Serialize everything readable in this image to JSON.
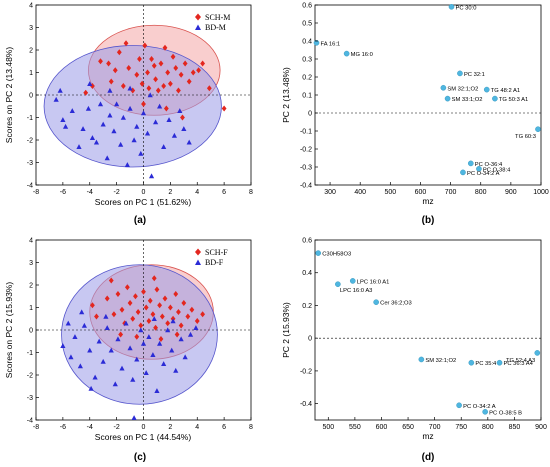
{
  "panels": [
    {
      "id": "a",
      "caption": "(a)",
      "chart_data": {
        "type": "scatter",
        "title": "",
        "xlabel": "Scores on PC 1 (51.62%)",
        "ylabel": "Scores on PC 2 (13.48%)",
        "xlim": [
          -8,
          8
        ],
        "ylim": [
          -4,
          4
        ],
        "xticks": [
          "-8",
          "-6",
          "-4",
          "-2",
          "0",
          "2",
          "4",
          "6",
          "8"
        ],
        "yticks": [
          "-4",
          "-3",
          "-2",
          "-1",
          "0",
          "1",
          "2",
          "3",
          "4"
        ],
        "grid": false,
        "legend_placement": "top-right",
        "ellipses": [
          {
            "series": "SCH-M",
            "cx": 0.8,
            "cy": 1.1,
            "rx": 4.9,
            "ry": 2.0,
            "fill": "#f4a6a6",
            "stroke": "#d9534f"
          },
          {
            "series": "BD-M",
            "cx": -0.8,
            "cy": -0.5,
            "rx": 6.6,
            "ry": 2.7,
            "fill": "#9a9ae8",
            "stroke": "#5555cc"
          }
        ],
        "series": [
          {
            "name": "SCH-M",
            "marker": "diamond",
            "color": "#e3261f",
            "points": [
              [
                -3.2,
                1.5
              ],
              [
                -2.6,
                1.4
              ],
              [
                -2.4,
                0.6
              ],
              [
                -2.1,
                1.1
              ],
              [
                -1.8,
                1.9
              ],
              [
                -1.5,
                0.4
              ],
              [
                -1.3,
                2.3
              ],
              [
                -1.1,
                1.2
              ],
              [
                -0.8,
                0.2
              ],
              [
                -0.5,
                0.9
              ],
              [
                -0.3,
                1.6
              ],
              [
                -0.1,
                0.5
              ],
              [
                0.1,
                2.2
              ],
              [
                0.3,
                1.0
              ],
              [
                0.4,
                0.3
              ],
              [
                0.6,
                1.6
              ],
              [
                0.8,
                1.3
              ],
              [
                0.9,
                0.7
              ],
              [
                1.1,
                0.2
              ],
              [
                1.3,
                1.4
              ],
              [
                1.5,
                0.4
              ],
              [
                1.6,
                2.1
              ],
              [
                1.8,
                1.0
              ],
              [
                2.0,
                0.5
              ],
              [
                2.2,
                1.7
              ],
              [
                2.4,
                1.2
              ],
              [
                2.6,
                0.2
              ],
              [
                2.8,
                0.9
              ],
              [
                3.1,
                1.4
              ],
              [
                3.4,
                0.6
              ],
              [
                3.7,
                1.0
              ],
              [
                4.1,
                1.1
              ],
              [
                4.4,
                1.4
              ],
              [
                4.9,
                0.3
              ],
              [
                6.0,
                -0.6
              ],
              [
                -3.8,
                0.4
              ],
              [
                -4.3,
                0.1
              ],
              [
                0.0,
                -0.4
              ],
              [
                1.7,
                -0.6
              ],
              [
                2.9,
                -1.0
              ]
            ]
          },
          {
            "name": "BD-M",
            "marker": "triangle",
            "color": "#2b2bd6",
            "points": [
              [
                -6.0,
                -1.1
              ],
              [
                -5.8,
                -1.4
              ],
              [
                -5.3,
                -0.7
              ],
              [
                -4.8,
                -2.3
              ],
              [
                -4.5,
                -1.5
              ],
              [
                -4.1,
                -0.6
              ],
              [
                -3.8,
                -1.9
              ],
              [
                -3.5,
                -2.1
              ],
              [
                -3.2,
                -0.4
              ],
              [
                -3.0,
                -1.3
              ],
              [
                -2.7,
                -2.8
              ],
              [
                -2.5,
                -0.9
              ],
              [
                -2.2,
                -1.6
              ],
              [
                -2.0,
                -0.4
              ],
              [
                -1.7,
                -2.2
              ],
              [
                -1.5,
                -1.0
              ],
              [
                -1.2,
                -3.1
              ],
              [
                -1.0,
                -0.6
              ],
              [
                -0.7,
                -2.0
              ],
              [
                -0.5,
                -1.4
              ],
              [
                -0.2,
                -2.6
              ],
              [
                0.0,
                -0.8
              ],
              [
                0.3,
                -1.7
              ],
              [
                0.6,
                -3.6
              ],
              [
                0.9,
                -1.2
              ],
              [
                1.2,
                -0.5
              ],
              [
                1.5,
                -2.3
              ],
              [
                1.9,
                -1.1
              ],
              [
                2.3,
                -1.8
              ],
              [
                2.7,
                -0.7
              ],
              [
                3.0,
                -1.5
              ],
              [
                3.4,
                -2.1
              ],
              [
                -6.2,
                0.2
              ],
              [
                -4.0,
                0.5
              ],
              [
                -2.5,
                0.2
              ],
              [
                -1.0,
                0.3
              ],
              [
                0.5,
                0.0
              ],
              [
                -6.5,
                -0.2
              ]
            ]
          }
        ]
      }
    },
    {
      "id": "b",
      "caption": "(b)",
      "chart_data": {
        "type": "scatter",
        "title": "",
        "xlabel": "mz",
        "ylabel": "PC 2 (13.48%)",
        "xlim": [
          250,
          1000
        ],
        "ylim": [
          -0.4,
          0.6
        ],
        "xticks": [
          "300",
          "400",
          "500",
          "600",
          "700",
          "800",
          "900",
          "1000"
        ],
        "yticks": [
          "-0.4",
          "-0.3",
          "-0.2",
          "-0.1",
          "0",
          "0.1",
          "0.2",
          "0.3",
          "0.4",
          "0.5",
          "0.6"
        ],
        "grid": false,
        "points": [
          {
            "label": "PC 30:0",
            "x": 703,
            "y": 0.59,
            "anchor": "right"
          },
          {
            "label": "FA 16:1",
            "x": 255,
            "y": 0.39,
            "anchor": "right"
          },
          {
            "label": "MG 16:0",
            "x": 355,
            "y": 0.33,
            "anchor": "right"
          },
          {
            "label": "PC 32:1",
            "x": 731,
            "y": 0.22,
            "anchor": "right"
          },
          {
            "label": "SM 32:1;O2",
            "x": 676,
            "y": 0.14,
            "anchor": "right"
          },
          {
            "label": "TG 48:2 A1",
            "x": 820,
            "y": 0.13,
            "anchor": "right"
          },
          {
            "label": "SM 33:1;O2",
            "x": 690,
            "y": 0.08,
            "anchor": "right"
          },
          {
            "label": "TG 50:3 A1",
            "x": 847,
            "y": 0.08,
            "anchor": "right"
          },
          {
            "label": "TG 60:3",
            "x": 990,
            "y": -0.09,
            "anchor": "left"
          },
          {
            "label": "PC O-36:4",
            "x": 767,
            "y": -0.28,
            "anchor": "right"
          },
          {
            "label": "PC O-38:4",
            "x": 794,
            "y": -0.31,
            "anchor": "right"
          },
          {
            "label": "PC O-34:2 A",
            "x": 741,
            "y": -0.33,
            "anchor": "right"
          }
        ]
      }
    },
    {
      "id": "c",
      "caption": "(c)",
      "chart_data": {
        "type": "scatter",
        "title": "",
        "xlabel": "Scores on PC 1 (44.54%)",
        "ylabel": "Scores on PC 2 (15.93%)",
        "xlim": [
          -8,
          8
        ],
        "ylim": [
          -4,
          4
        ],
        "xticks": [
          "-8",
          "-6",
          "-4",
          "-2",
          "0",
          "2",
          "4",
          "6",
          "8"
        ],
        "yticks": [
          "-4",
          "-3",
          "-2",
          "-1",
          "0",
          "1",
          "2",
          "3",
          "4"
        ],
        "grid": false,
        "legend_placement": "top-right",
        "ellipses": [
          {
            "series": "SCH-F",
            "cx": 0.6,
            "cy": 0.8,
            "rx": 4.6,
            "ry": 2.1,
            "fill": "#f4a6a6",
            "stroke": "#d9534f"
          },
          {
            "series": "BD-F",
            "cx": -0.3,
            "cy": -0.2,
            "rx": 5.8,
            "ry": 3.1,
            "fill": "#9a9ae8",
            "stroke": "#5555cc"
          }
        ],
        "series": [
          {
            "name": "SCH-F",
            "marker": "diamond",
            "color": "#e3261f",
            "points": [
              [
                -2.4,
                2.2
              ],
              [
                -2.7,
                1.4
              ],
              [
                -2.2,
                0.7
              ],
              [
                -1.9,
                1.6
              ],
              [
                -1.6,
                0.9
              ],
              [
                -1.4,
                0.3
              ],
              [
                -1.2,
                1.9
              ],
              [
                -1.0,
                1.2
              ],
              [
                -0.8,
                0.5
              ],
              [
                -0.6,
                1.5
              ],
              [
                -0.4,
                0.8
              ],
              [
                -0.2,
                0.2
              ],
              [
                0.0,
                1.7
              ],
              [
                0.2,
                1.0
              ],
              [
                0.4,
                0.4
              ],
              [
                0.5,
                1.3
              ],
              [
                0.7,
                0.7
              ],
              [
                0.9,
                0.1
              ],
              [
                1.0,
                1.8
              ],
              [
                1.2,
                1.1
              ],
              [
                1.4,
                0.6
              ],
              [
                1.6,
                1.4
              ],
              [
                1.8,
                0.3
              ],
              [
                2.0,
                1.0
              ],
              [
                2.2,
                0.5
              ],
              [
                2.4,
                1.6
              ],
              [
                2.6,
                0.8
              ],
              [
                2.8,
                0.2
              ],
              [
                3.0,
                1.2
              ],
              [
                3.3,
                0.6
              ],
              [
                3.6,
                0.9
              ],
              [
                4.0,
                0.4
              ],
              [
                4.4,
                0.7
              ],
              [
                -3.5,
                0.6
              ],
              [
                -3.8,
                1.1
              ],
              [
                -0.5,
                -0.3
              ],
              [
                1.3,
                -0.4
              ],
              [
                2.5,
                -0.2
              ],
              [
                0.8,
                2.3
              ],
              [
                -1.7,
                -0.2
              ]
            ]
          },
          {
            "name": "BD-F",
            "marker": "triangle",
            "color": "#2b2bd6",
            "points": [
              [
                -6.0,
                -0.7
              ],
              [
                -5.4,
                -1.2
              ],
              [
                -5.1,
                -0.3
              ],
              [
                -4.7,
                -1.6
              ],
              [
                -4.4,
                0.2
              ],
              [
                -4.0,
                -0.9
              ],
              [
                -3.6,
                -2.1
              ],
              [
                -3.3,
                -0.5
              ],
              [
                -3.0,
                -1.4
              ],
              [
                -2.7,
                0.1
              ],
              [
                -2.4,
                -0.9
              ],
              [
                -2.1,
                -2.4
              ],
              [
                -1.9,
                -0.4
              ],
              [
                -1.6,
                -1.7
              ],
              [
                -1.3,
                0.3
              ],
              [
                -1.0,
                -0.8
              ],
              [
                -0.8,
                -2.2
              ],
              [
                -0.5,
                -1.3
              ],
              [
                -0.2,
                0.0
              ],
              [
                0.0,
                -0.6
              ],
              [
                0.2,
                -1.9
              ],
              [
                0.4,
                -0.3
              ],
              [
                0.7,
                -1.1
              ],
              [
                1.0,
                -2.7
              ],
              [
                1.2,
                -0.6
              ],
              [
                1.5,
                -1.5
              ],
              [
                1.8,
                0.0
              ],
              [
                2.1,
                -0.9
              ],
              [
                2.4,
                -1.8
              ],
              [
                2.8,
                -0.4
              ],
              [
                3.1,
                -1.2
              ],
              [
                3.5,
                -0.2
              ],
              [
                -0.7,
                -3.9
              ],
              [
                -4.6,
                0.8
              ],
              [
                -2.8,
                0.6
              ],
              [
                0.8,
                0.5
              ],
              [
                2.2,
                0.4
              ],
              [
                -5.6,
                0.3
              ],
              [
                3.9,
                0.1
              ],
              [
                -3.9,
                -2.6
              ]
            ]
          }
        ]
      }
    },
    {
      "id": "d",
      "caption": "(d)",
      "chart_data": {
        "type": "scatter",
        "title": "",
        "xlabel": "mz",
        "ylabel": "PC 2 (15.93%)",
        "xlim": [
          475,
          900
        ],
        "ylim": [
          -0.5,
          0.6
        ],
        "xticks": [
          "500",
          "550",
          "600",
          "650",
          "700",
          "750",
          "800",
          "850",
          "900"
        ],
        "yticks": [
          "-0.4",
          "-0.2",
          "0",
          "0.2",
          "0.4",
          "0.6"
        ],
        "grid": false,
        "points": [
          {
            "label": "C30H58O3",
            "x": 481,
            "y": 0.52,
            "anchor": "right"
          },
          {
            "label": "LPC 16:0 A1",
            "x": 546,
            "y": 0.35,
            "anchor": "right"
          },
          {
            "label": "LPC 16:0 A3",
            "x": 518,
            "y": 0.33,
            "anchor": "right-below"
          },
          {
            "label": "Cer 36:2;O3",
            "x": 590,
            "y": 0.22,
            "anchor": "right"
          },
          {
            "label": "SM 32:1;O2",
            "x": 675,
            "y": -0.13,
            "anchor": "right"
          },
          {
            "label": "TG 52:4 A3",
            "x": 893,
            "y": -0.09,
            "anchor": "left"
          },
          {
            "label": "PC 35:4",
            "x": 769,
            "y": -0.15,
            "anchor": "right"
          },
          {
            "label": "PC 36:3 A4",
            "x": 822,
            "y": -0.15,
            "anchor": "right"
          },
          {
            "label": "PC O-34:2 A",
            "x": 746,
            "y": -0.41,
            "anchor": "right"
          },
          {
            "label": "PC O-38:5 B",
            "x": 795,
            "y": -0.45,
            "anchor": "right"
          }
        ]
      }
    }
  ]
}
